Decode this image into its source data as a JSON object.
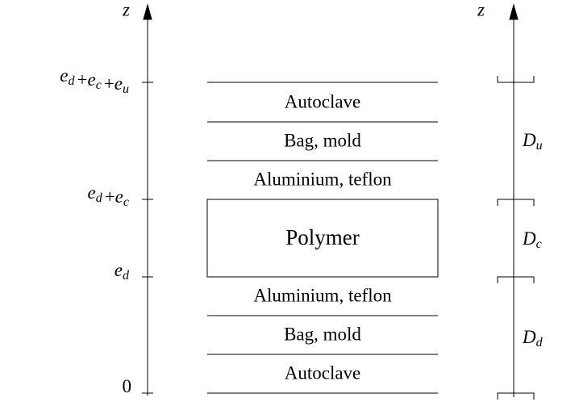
{
  "left_axis": {
    "name": "z",
    "ticks": [
      {
        "label": [
          [
            "e",
            "d"
          ],
          "+",
          [
            "e",
            "c"
          ],
          "+",
          [
            "e",
            "u"
          ]
        ]
      },
      {
        "label": [
          [
            "e",
            "d"
          ],
          "+",
          [
            "e",
            "c"
          ]
        ]
      },
      {
        "label": [
          [
            "e",
            "d"
          ]
        ]
      },
      {
        "label": [
          "0"
        ]
      }
    ]
  },
  "layers": [
    "Autoclave",
    "Bag, mold",
    "Aluminium, teflon",
    "Polymer",
    "Aluminium, teflon",
    "Bag, mold",
    "Autoclave"
  ],
  "right_axis": {
    "name": "z",
    "domains": [
      {
        "symbol": "D",
        "sub": "u"
      },
      {
        "symbol": "D",
        "sub": "c"
      },
      {
        "symbol": "D",
        "sub": "d"
      }
    ]
  }
}
